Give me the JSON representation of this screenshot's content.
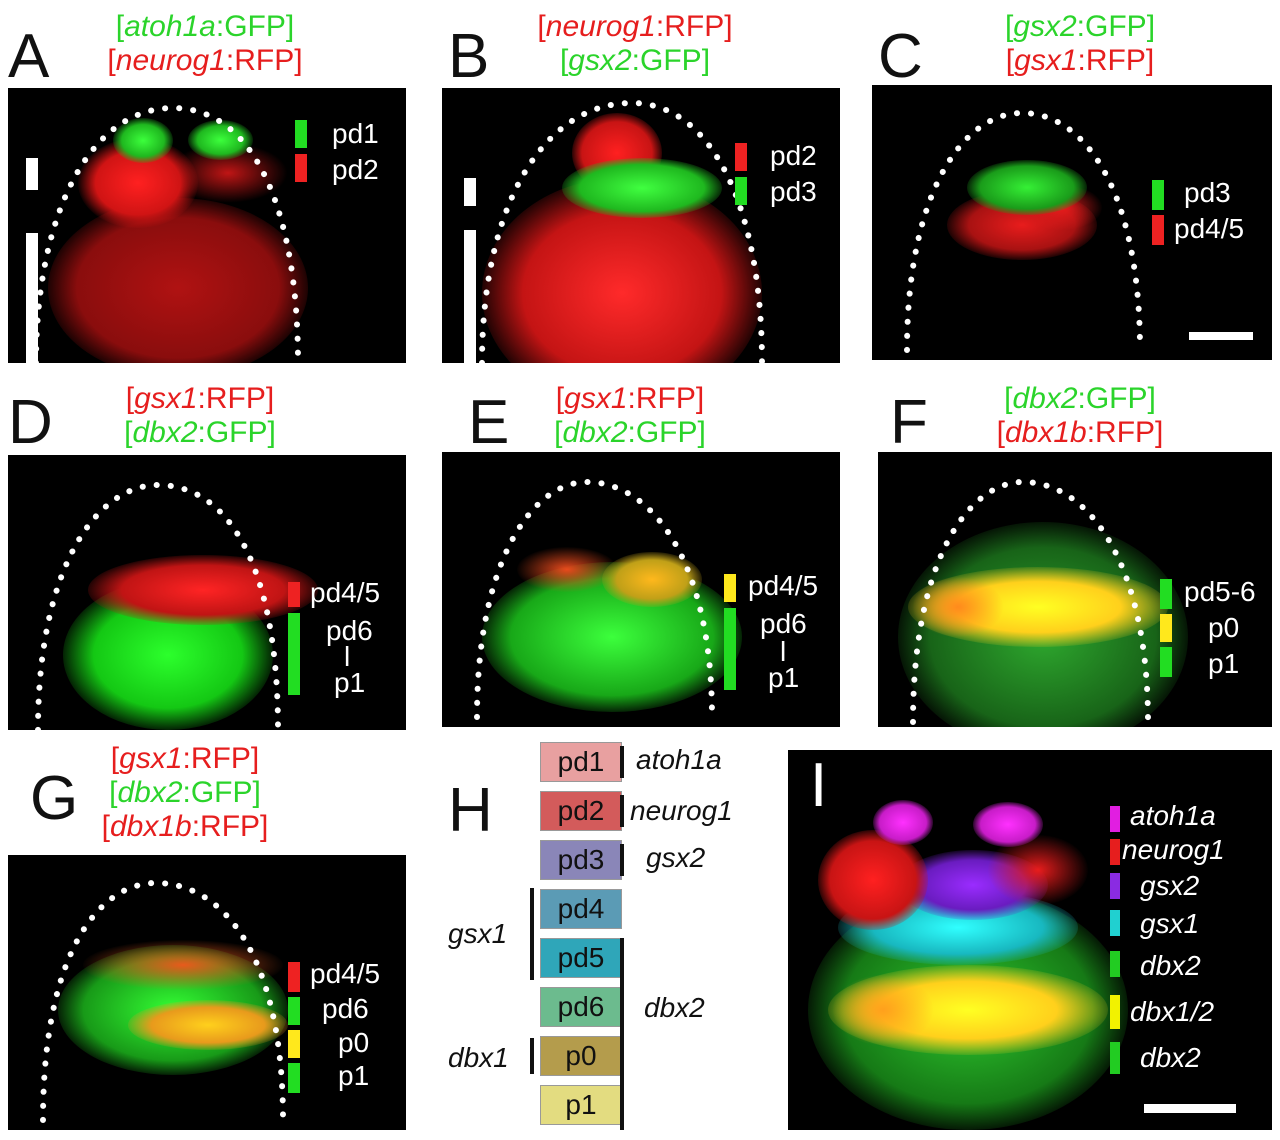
{
  "panels": {
    "A": {
      "letter": "A",
      "l1": {
        "gene": "atoh1a",
        "rep": ":GFP"
      },
      "l2": {
        "gene": "neurog1",
        "rep": ":RFP"
      },
      "legend": [
        "pd1",
        "pd2"
      ]
    },
    "B": {
      "letter": "B",
      "l1": {
        "gene": "neurog1",
        "rep": ":RFP"
      },
      "l2": {
        "gene": "gsx2",
        "rep": ":GFP"
      },
      "legend": [
        "pd2",
        "pd3"
      ]
    },
    "C": {
      "letter": "C",
      "l1": {
        "gene": "gsx2",
        "rep": ":GFP"
      },
      "l2": {
        "gene": "gsx1",
        "rep": ":RFP"
      },
      "legend": [
        "pd3",
        "pd4/5"
      ]
    },
    "D": {
      "letter": "D",
      "l1": {
        "gene": "gsx1",
        "rep": ":RFP"
      },
      "l2": {
        "gene": "dbx2",
        "rep": ":GFP"
      },
      "legend": [
        "pd4/5",
        "pd6",
        "l",
        "p1"
      ]
    },
    "E": {
      "letter": "E",
      "l1": {
        "gene": "gsx1",
        "rep": ":RFP"
      },
      "l2": {
        "gene": "dbx2",
        "rep": ":GFP"
      },
      "legend": [
        "pd4/5",
        "pd6",
        "l",
        "p1"
      ]
    },
    "F": {
      "letter": "F",
      "l1": {
        "gene": "dbx2",
        "rep": ":GFP"
      },
      "l2": {
        "gene": "dbx1b",
        "rep": ":RFP"
      },
      "legend": [
        "pd5-6",
        "p0",
        "p1"
      ]
    },
    "G": {
      "letter": "G",
      "l1": {
        "gene": "gsx1",
        "rep": ":RFP"
      },
      "l2": {
        "gene": "dbx2",
        "rep": ":GFP"
      },
      "l3": {
        "gene": "dbx1b",
        "rep": ":RFP"
      },
      "legend": [
        "pd4/5",
        "pd6",
        "p0",
        "p1"
      ]
    }
  },
  "H": {
    "letter": "H",
    "domains": [
      {
        "label": "pd1",
        "color": "#e8a0a0"
      },
      {
        "label": "pd2",
        "color": "#d35b5b"
      },
      {
        "label": "pd3",
        "color": "#8a86b8"
      },
      {
        "label": "pd4",
        "color": "#5b9bb5"
      },
      {
        "label": "pd5",
        "color": "#2fa6b9"
      },
      {
        "label": "pd6",
        "color": "#6cbb8e"
      },
      {
        "label": "p0",
        "color": "#b49c4c"
      },
      {
        "label": "p1",
        "color": "#e3dc80"
      }
    ],
    "genes": {
      "atoh1a": "atoh1a",
      "neurog1": "neurog1",
      "gsx2": "gsx2",
      "gsx1": "gsx1",
      "dbx2": "dbx2",
      "dbx1": "dbx1"
    }
  },
  "I": {
    "letter": "I",
    "legend": [
      {
        "label": "atoh1a",
        "color": "#e11ee1"
      },
      {
        "label": "neurog1",
        "color": "#e61e1e"
      },
      {
        "label": "gsx2",
        "color": "#8a2be2"
      },
      {
        "label": "gsx1",
        "color": "#20d0d0"
      },
      {
        "label": "dbx2",
        "color": "#22cc22"
      },
      {
        "label": "dbx1/2",
        "color": "#f2f200"
      },
      {
        "label": "dbx2",
        "color": "#22cc22"
      }
    ]
  }
}
